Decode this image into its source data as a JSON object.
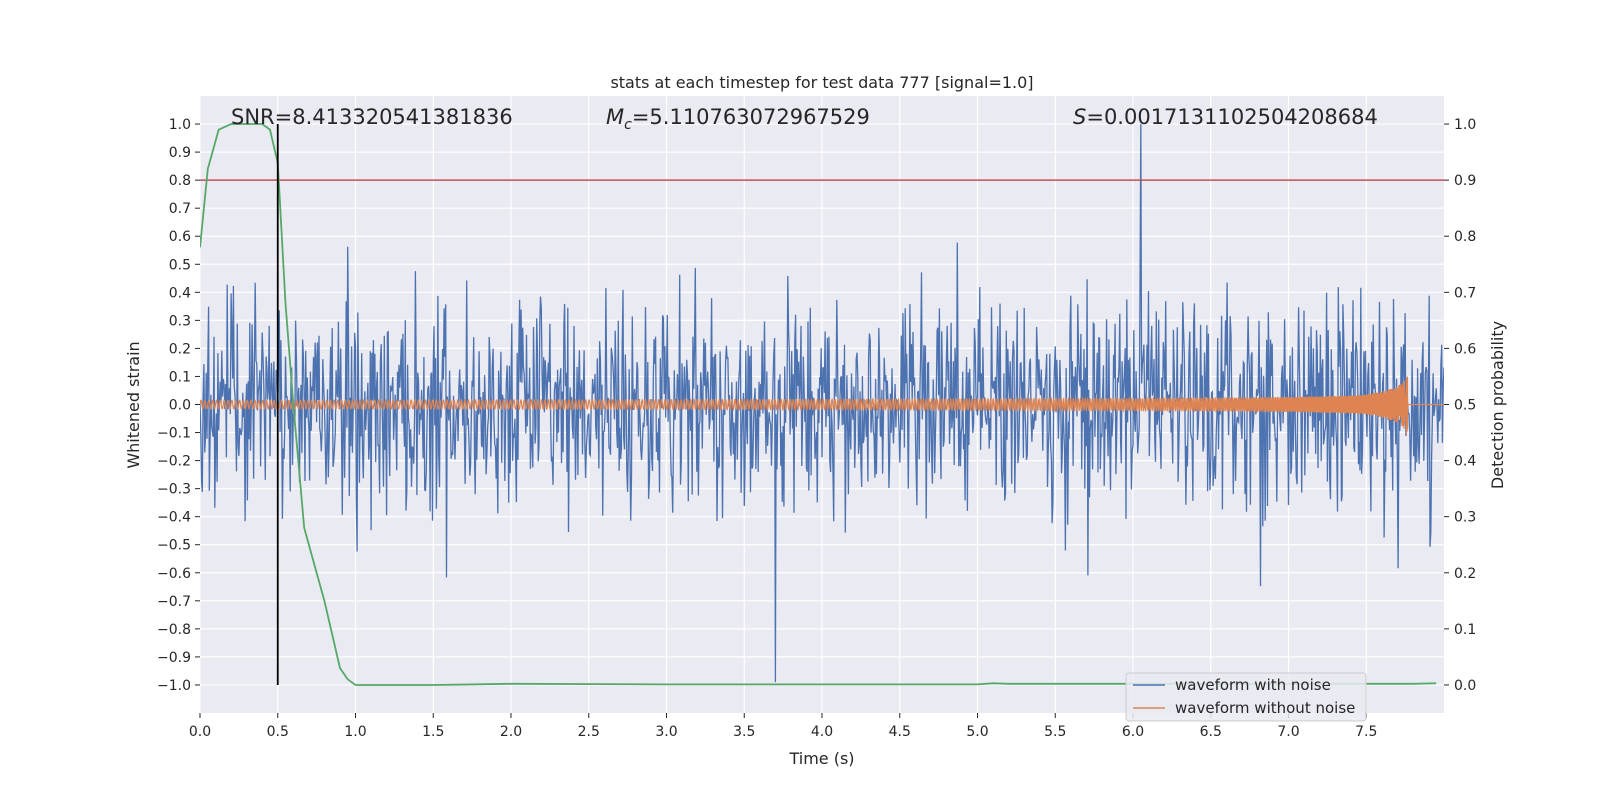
{
  "chart_data": {
    "type": "line",
    "title": "stats at each timestep for test data 777 [signal=1.0]",
    "xlabel": "Time (s)",
    "ylabel": "Whitened strain",
    "ylabel_right": "Detection probability",
    "xlim": [
      0.0,
      8.0
    ],
    "ylim": [
      -1.1,
      1.1
    ],
    "ylim_right": [
      -0.05,
      1.05
    ],
    "x_ticks": [
      "0.0",
      "0.5",
      "1.0",
      "1.5",
      "2.0",
      "2.5",
      "3.0",
      "3.5",
      "4.0",
      "4.5",
      "5.0",
      "5.5",
      "6.0",
      "6.5",
      "7.0",
      "7.5"
    ],
    "y_ticks": [
      "1.0",
      "0.9",
      "0.8",
      "0.7",
      "0.6",
      "0.5",
      "0.4",
      "0.3",
      "0.2",
      "0.1",
      "0.0",
      "−0.1",
      "−0.2",
      "−0.3",
      "−0.4",
      "−0.5",
      "−0.6",
      "−0.7",
      "−0.8",
      "−0.9",
      "−1.0"
    ],
    "y_ticks_right": [
      "1.0",
      "0.9",
      "0.8",
      "0.7",
      "0.6",
      "0.5",
      "0.4",
      "0.3",
      "0.2",
      "0.1",
      "0.0"
    ],
    "annotations": {
      "snr": "SNR=8.413320541381836",
      "mc_symbol": "M",
      "mc_sub": "c",
      "mc_value": "=5.110763072967529",
      "s_symbol": "S",
      "s_value": "=0.0017131102504208684"
    },
    "threshold": {
      "value": 0.9,
      "axis": "right",
      "color": "#c44e52"
    },
    "marker_time": 0.5,
    "series": [
      {
        "name": "waveform with noise",
        "color": "#4c72b0",
        "noise_std": 0.19,
        "peak_upper": 1.0,
        "peak_lower": -0.99
      },
      {
        "name": "waveform without noise",
        "color": "#dd8452",
        "start_amplitude": 0.015,
        "end_amplitude": 0.19,
        "merger_time": 7.77
      },
      {
        "name": "detection probability",
        "color": "#55a868",
        "axis": "right",
        "x": [
          0.0,
          0.05,
          0.12,
          0.2,
          0.3,
          0.4,
          0.45,
          0.5,
          0.55,
          0.6,
          0.67,
          0.75,
          0.8,
          0.85,
          0.9,
          0.95,
          1.0,
          1.5,
          2.0,
          3.0,
          4.0,
          5.0,
          5.1,
          5.2,
          6.0,
          7.0,
          7.8,
          7.95
        ],
        "y": [
          0.78,
          0.92,
          0.99,
          1.0,
          1.0,
          1.0,
          0.99,
          0.93,
          0.68,
          0.5,
          0.28,
          0.2,
          0.15,
          0.09,
          0.03,
          0.01,
          0.0,
          0.0,
          0.002,
          0.001,
          0.001,
          0.001,
          0.003,
          0.002,
          0.002,
          0.002,
          0.002,
          0.003
        ]
      }
    ],
    "legend": {
      "location": "lower-right",
      "entries": [
        "waveform with noise",
        "waveform without noise"
      ]
    }
  }
}
